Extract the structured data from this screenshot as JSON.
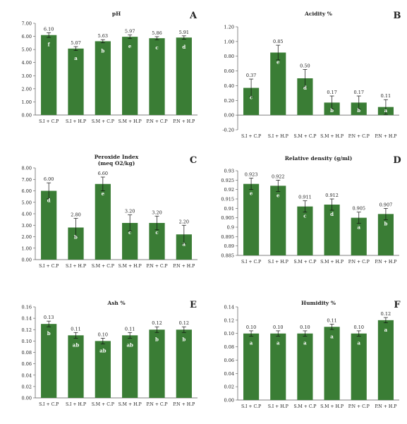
{
  "colors": {
    "bar": "#3a7d35",
    "axis": "#555555",
    "grid": "#dddddd",
    "letter": "#ffffff",
    "text": "#222222"
  },
  "chart_data": [
    {
      "type": "bar",
      "panel_letter": "A",
      "title": "pH",
      "categories": [
        "S.I + C.P",
        "S.I + H.P",
        "S.M + C.P",
        "S.M + H.P",
        "P.N + C.P",
        "P.N + H.P"
      ],
      "values": [
        6.1,
        5.07,
        5.63,
        5.97,
        5.86,
        5.91
      ],
      "value_labels": [
        "6.10",
        "5.07",
        "5.63",
        "5.97",
        "5.86",
        "5.91"
      ],
      "errors": [
        0.18,
        0.15,
        0.12,
        0.14,
        0.12,
        0.13
      ],
      "letters": [
        "f",
        "a",
        "b",
        "e",
        "c",
        "d"
      ],
      "ylim": [
        0,
        7
      ],
      "yticks": [
        0,
        1,
        2,
        3,
        4,
        5,
        6,
        7
      ],
      "ytick_labels": [
        "0.00",
        "1.00",
        "2.00",
        "3.00",
        "4.00",
        "5.00",
        "6.00",
        "7.00"
      ]
    },
    {
      "type": "bar",
      "panel_letter": "B",
      "title": "Acidity %",
      "categories": [
        "S.I + C.P",
        "S.I + H.P",
        "S.M + C.P",
        "S.M + H.P",
        "P.N + C.P",
        "P.N + H.P"
      ],
      "values": [
        0.37,
        0.85,
        0.5,
        0.17,
        0.17,
        0.11
      ],
      "value_labels": [
        "0.37",
        "0.85",
        "0.50",
        "0.17",
        "0.17",
        "0.11"
      ],
      "errors": [
        0.12,
        0.1,
        0.12,
        0.09,
        0.09,
        0.1
      ],
      "letters": [
        "c",
        "e",
        "d",
        "b",
        "b",
        "a"
      ],
      "ylim": [
        -0.2,
        1.2
      ],
      "yticks": [
        -0.2,
        0,
        0.2,
        0.4,
        0.6,
        0.8,
        1.0,
        1.2
      ],
      "ytick_labels": [
        "-0.20",
        "0.00",
        "0.20",
        "0.40",
        "0.60",
        "0.80",
        "1.00",
        "1.20"
      ]
    },
    {
      "type": "bar",
      "panel_letter": "C",
      "title": "Peroxide Index",
      "subtitle": "(meq O2/kg)",
      "categories": [
        "S.I + C.P",
        "S.I + H.P",
        "S.M + C.P",
        "S.M + H.P",
        "P.N + C.P",
        "P.N + H.P"
      ],
      "values": [
        6.0,
        2.8,
        6.6,
        3.2,
        3.2,
        2.2
      ],
      "value_labels": [
        "6.00",
        "2.80",
        "6.60",
        "3.20",
        "3.20",
        "2.20"
      ],
      "errors": [
        0.7,
        0.8,
        0.6,
        0.7,
        0.6,
        0.8
      ],
      "letters": [
        "d",
        "b",
        "e",
        "c",
        "c",
        "a"
      ],
      "ylim": [
        0,
        8
      ],
      "yticks": [
        0,
        1,
        2,
        3,
        4,
        5,
        6,
        7,
        8
      ],
      "ytick_labels": [
        "0.00",
        "1.00",
        "2.00",
        "3.00",
        "4.00",
        "5.00",
        "6.00",
        "7.00",
        "8.00"
      ]
    },
    {
      "type": "bar",
      "panel_letter": "D",
      "title": "Relative density (g/ml)",
      "categories": [
        "S.I + C.P",
        "S.I + H.P",
        "S.M + C.P",
        "S.M + H.P",
        "P.N + C.P",
        "P.N + H.P"
      ],
      "values": [
        0.923,
        0.922,
        0.911,
        0.912,
        0.905,
        0.907
      ],
      "value_labels": [
        "0.923",
        "0.922",
        "0.911",
        "0.912",
        "0.905",
        "0.907"
      ],
      "errors": [
        0.003,
        0.003,
        0.003,
        0.003,
        0.003,
        0.003
      ],
      "letters": [
        "e",
        "e",
        "c",
        "d",
        "a",
        "b"
      ],
      "ylim": [
        0.885,
        0.93
      ],
      "yticks": [
        0.885,
        0.89,
        0.895,
        0.9,
        0.905,
        0.91,
        0.915,
        0.92,
        0.925,
        0.93
      ],
      "ytick_labels": [
        "0.885",
        "0.89",
        "0.895",
        "0.9",
        "0.905",
        "0.91",
        "0.915",
        "0.92",
        "0.925",
        "0.93"
      ]
    },
    {
      "type": "bar",
      "panel_letter": "E",
      "title": "Ash %",
      "categories": [
        "S.I + C.P",
        "S.I + H.P",
        "S.M + C.P",
        "S.M + H.P",
        "P.N + C.P",
        "P.N + H.P"
      ],
      "values": [
        0.13,
        0.11,
        0.1,
        0.11,
        0.12,
        0.12
      ],
      "value_labels": [
        "0.13",
        "0.11",
        "0.10",
        "0.11",
        "0.12",
        "0.12"
      ],
      "errors": [
        0.005,
        0.005,
        0.005,
        0.005,
        0.005,
        0.005
      ],
      "letters": [
        "b",
        "ab",
        "ab",
        "ab",
        "b",
        "b"
      ],
      "ylim": [
        0,
        0.16
      ],
      "yticks": [
        0,
        0.02,
        0.04,
        0.06,
        0.08,
        0.1,
        0.12,
        0.14,
        0.16
      ],
      "ytick_labels": [
        "0.00",
        "0.02",
        "0.04",
        "0.06",
        "0.08",
        "0.10",
        "0.12",
        "0.14",
        "0.16"
      ]
    },
    {
      "type": "bar",
      "panel_letter": "F",
      "title": "Humidity %",
      "categories": [
        "S.I + C.P",
        "S.I + H.P",
        "S.M + C.P",
        "S.M + H.P",
        "P.N + C.P",
        "P.N + H.P"
      ],
      "values": [
        0.1,
        0.1,
        0.1,
        0.11,
        0.1,
        0.12
      ],
      "value_labels": [
        "0.10",
        "0.10",
        "0.10",
        "0.11",
        "0.10",
        "0.12"
      ],
      "errors": [
        0.004,
        0.004,
        0.004,
        0.004,
        0.004,
        0.004
      ],
      "letters": [
        "a",
        "a",
        "a",
        "a",
        "a",
        "a"
      ],
      "ylim": [
        0,
        0.14
      ],
      "yticks": [
        0,
        0.02,
        0.04,
        0.06,
        0.08,
        0.1,
        0.12,
        0.14
      ],
      "ytick_labels": [
        "0.00",
        "0.02",
        "0.04",
        "0.06",
        "0.08",
        "0.10",
        "0.12",
        "0.14"
      ]
    }
  ]
}
